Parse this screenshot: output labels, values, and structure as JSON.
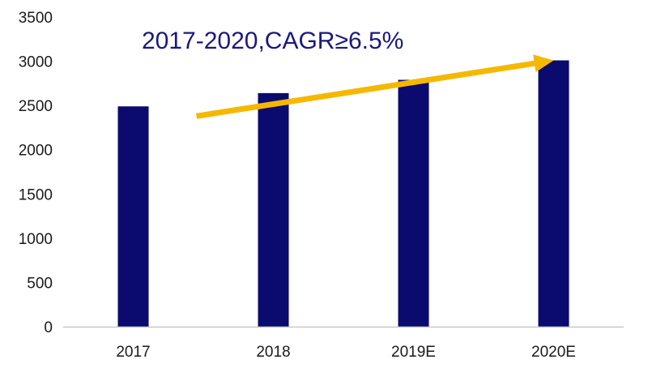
{
  "chart_data": {
    "type": "bar",
    "title": "",
    "xlabel": "",
    "ylabel": "",
    "categories": [
      "2017",
      "2018",
      "2019E",
      "2020E"
    ],
    "values": [
      2490,
      2640,
      2790,
      3010
    ],
    "ylim": [
      0,
      3500
    ],
    "yticks": [
      0,
      500,
      1000,
      1500,
      2000,
      2500,
      3000,
      3500
    ],
    "grid": false,
    "legend": "none",
    "annotation": {
      "text": "2017-2020,CAGR≥6.5%",
      "arrow_from_category": "2018",
      "arrow_from_value": 2380,
      "arrow_to_category": "2020E",
      "arrow_to_value": 3010
    },
    "colors": {
      "bar": "#0b0a6e",
      "arrow": "#f5b800",
      "annotation_text": "#1a1880",
      "axis": "#c8c8c8",
      "tick_text": "#1a1a1a"
    }
  }
}
